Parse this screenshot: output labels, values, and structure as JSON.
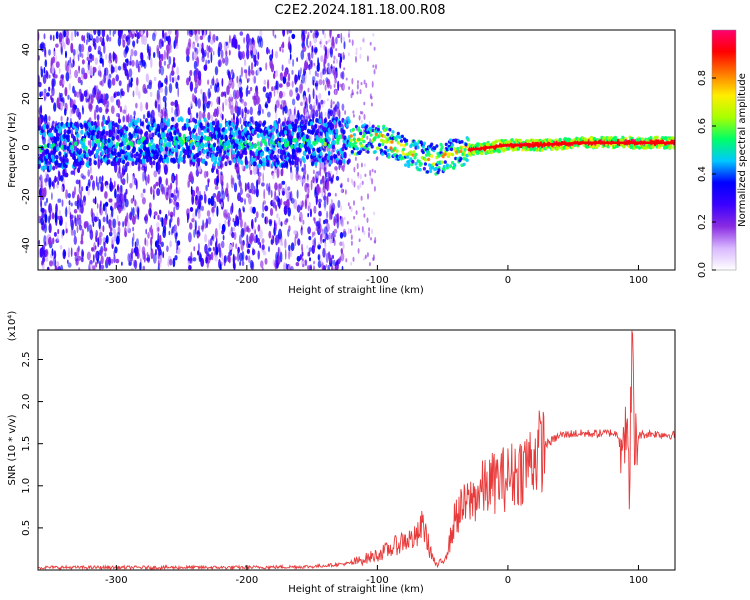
{
  "figure_title": "C2E2.2024.181.18.00.R08",
  "chart_data": [
    {
      "type": "heatmap",
      "xlabel": "Height of straight line (km)",
      "ylabel": "Frequency (Hz)",
      "xlim": [
        -360,
        128
      ],
      "ylim": [
        -50,
        48
      ],
      "xticks": [
        -300,
        -200,
        -100,
        0,
        100
      ],
      "yticks": [
        -40,
        -20,
        0,
        20,
        40
      ],
      "ridge": {
        "x": [
          -360,
          -300,
          -250,
          -200,
          -150,
          -120,
          -100,
          -80,
          -65,
          -55,
          -45,
          -30,
          -15,
          0,
          20,
          60,
          128
        ],
        "frequency": [
          0,
          2,
          3,
          1,
          2,
          3,
          4,
          -1,
          -4,
          -5,
          -3,
          -1,
          0,
          1,
          1,
          2,
          2
        ]
      },
      "colorbar": {
        "label": "Normalized spectral amplitude",
        "range": [
          0.0,
          1.0
        ],
        "ticks": [
          0.0,
          0.2,
          0.4,
          0.6,
          0.8
        ],
        "colors": [
          "#ffffff",
          "#d9b8ff",
          "#8a2be2",
          "#3a00ff",
          "#0000ff",
          "#00c8ff",
          "#00ff66",
          "#a8ff00",
          "#ffee00",
          "#ff7a00",
          "#ff0000",
          "#ff0070"
        ]
      }
    },
    {
      "type": "line",
      "xlabel": "Height of straight line (km)",
      "ylabel": "SNR (10 * v/v)",
      "multiplier_label": "(x10⁴)",
      "xlim": [
        -360,
        128
      ],
      "ylim": [
        0,
        2.85
      ],
      "xticks": [
        -300,
        -200,
        -100,
        0,
        100
      ],
      "yticks": [
        0.5,
        1.0,
        1.5,
        2.0,
        2.5
      ],
      "ytick_labels": [
        "0.5",
        "1.0",
        "1.5",
        "2.0",
        "2.5"
      ],
      "color": "#e83a3a",
      "x": [
        -360,
        -300,
        -200,
        -150,
        -120,
        -100,
        -90,
        -80,
        -70,
        -65,
        -60,
        -55,
        -50,
        -45,
        -40,
        -30,
        -20,
        -10,
        0,
        10,
        20,
        30,
        40,
        50,
        60,
        70,
        80,
        85,
        90,
        93,
        95,
        97,
        100,
        110,
        128
      ],
      "y": [
        0.03,
        0.03,
        0.03,
        0.04,
        0.08,
        0.18,
        0.25,
        0.35,
        0.38,
        0.55,
        0.25,
        0.05,
        0.1,
        0.3,
        0.65,
        0.8,
        0.95,
        1.05,
        1.1,
        1.2,
        1.35,
        1.5,
        1.6,
        1.62,
        1.62,
        1.62,
        1.63,
        1.6,
        1.7,
        1.0,
        2.8,
        1.4,
        1.6,
        1.62,
        1.6
      ]
    }
  ]
}
